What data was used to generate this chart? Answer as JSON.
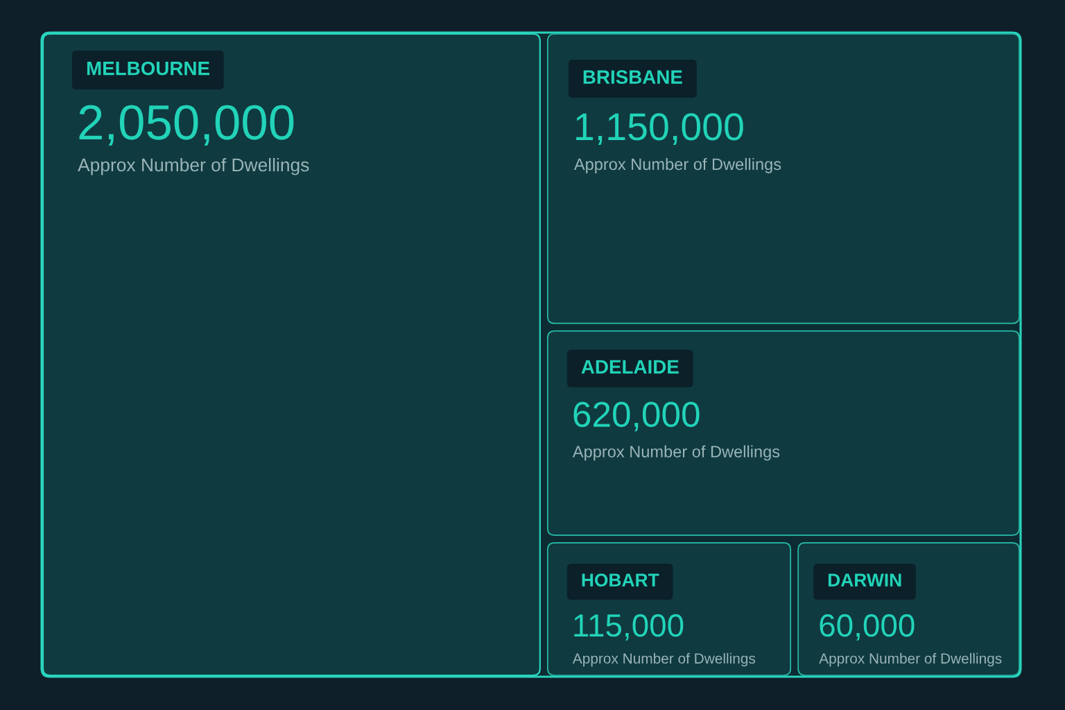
{
  "chart_data": {
    "type": "other",
    "categories": [
      "MELBOURNE",
      "BRISBANE",
      "ADELAIDE",
      "HOBART",
      "DARWIN"
    ],
    "values": [
      2050000,
      1150000,
      620000,
      115000,
      60000
    ],
    "value_labels": [
      "2,050,000",
      "1,150,000",
      "620,000",
      "115,000",
      "60,000"
    ],
    "ylabel": "Approx Number of Dwellings",
    "color": "#0f3a40"
  }
}
